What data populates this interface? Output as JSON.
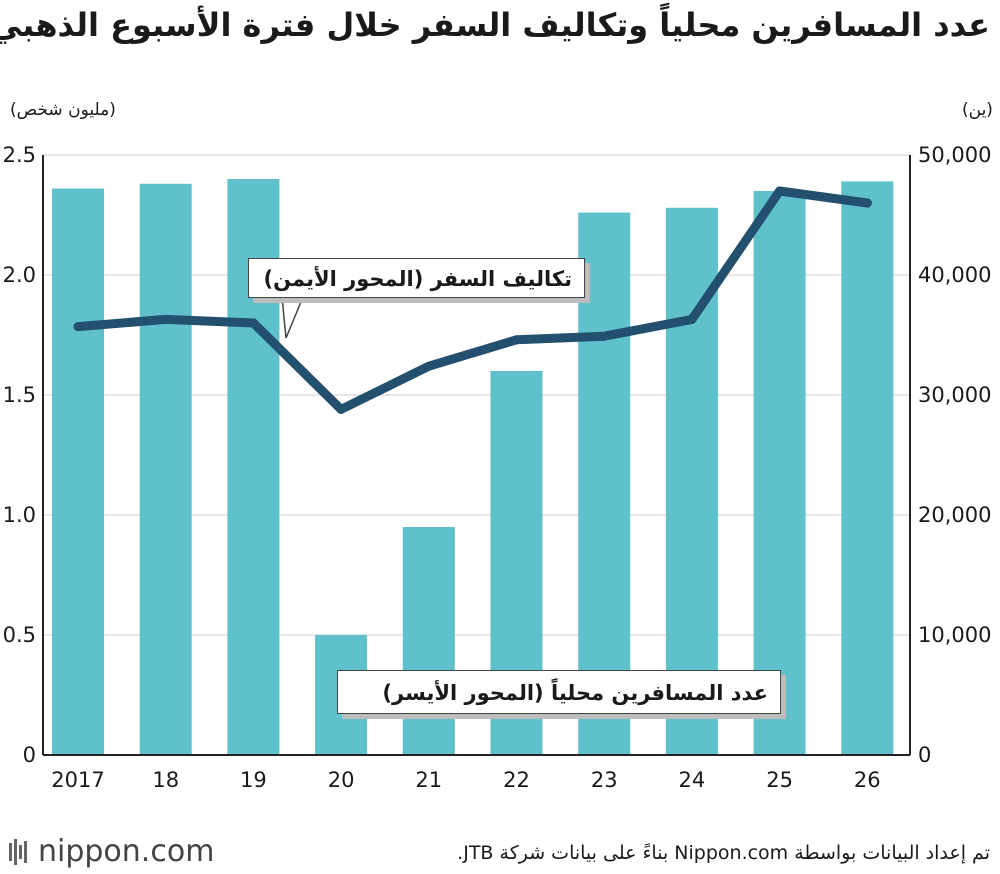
{
  "title": "عدد المسافرين محلياً وتكاليف السفر خلال فترة الأسبوع الذهبي",
  "unit_left": "(مليون شخص)",
  "unit_right": "(ين)",
  "callout_line": "تكاليف السفر (المحور الأيمن)",
  "callout_bars": "عدد المسافرين محلياً (المحور الأيسر)",
  "logo_text": "nippon.com",
  "source": "تم إعداد البيانات بواسطة Nippon.com بناءً على بيانات شركة JTB.",
  "colors": {
    "bar": "#5ec1cc",
    "line": "#22506e",
    "grid": "#cfcfcf",
    "axis": "#222222"
  },
  "chart_data": {
    "type": "bar",
    "categories": [
      "2017",
      "18",
      "19",
      "20",
      "21",
      "22",
      "23",
      "24",
      "25",
      "26"
    ],
    "series": [
      {
        "name": "عدد المسافرين محلياً (المحور الأيسر)",
        "type": "bar",
        "axis": "left",
        "values": [
          2.36,
          2.38,
          2.4,
          0.5,
          0.95,
          1.6,
          2.26,
          2.28,
          2.35,
          2.39
        ]
      },
      {
        "name": "تكاليف السفر (المحور الأيمن)",
        "type": "line",
        "axis": "right",
        "values": [
          35700,
          36300,
          36000,
          28800,
          32400,
          34600,
          34900,
          36300,
          47000,
          46000
        ]
      }
    ],
    "left_axis": {
      "ylim": [
        0,
        2.5
      ],
      "ticks": [
        "0",
        "0.5",
        "1.0",
        "1.5",
        "2.0",
        "2.5"
      ]
    },
    "right_axis": {
      "ylim": [
        0,
        50000
      ],
      "ticks": [
        "0",
        "10,000",
        "20,000",
        "30,000",
        "40,000",
        "50,000"
      ]
    },
    "grid": true
  }
}
